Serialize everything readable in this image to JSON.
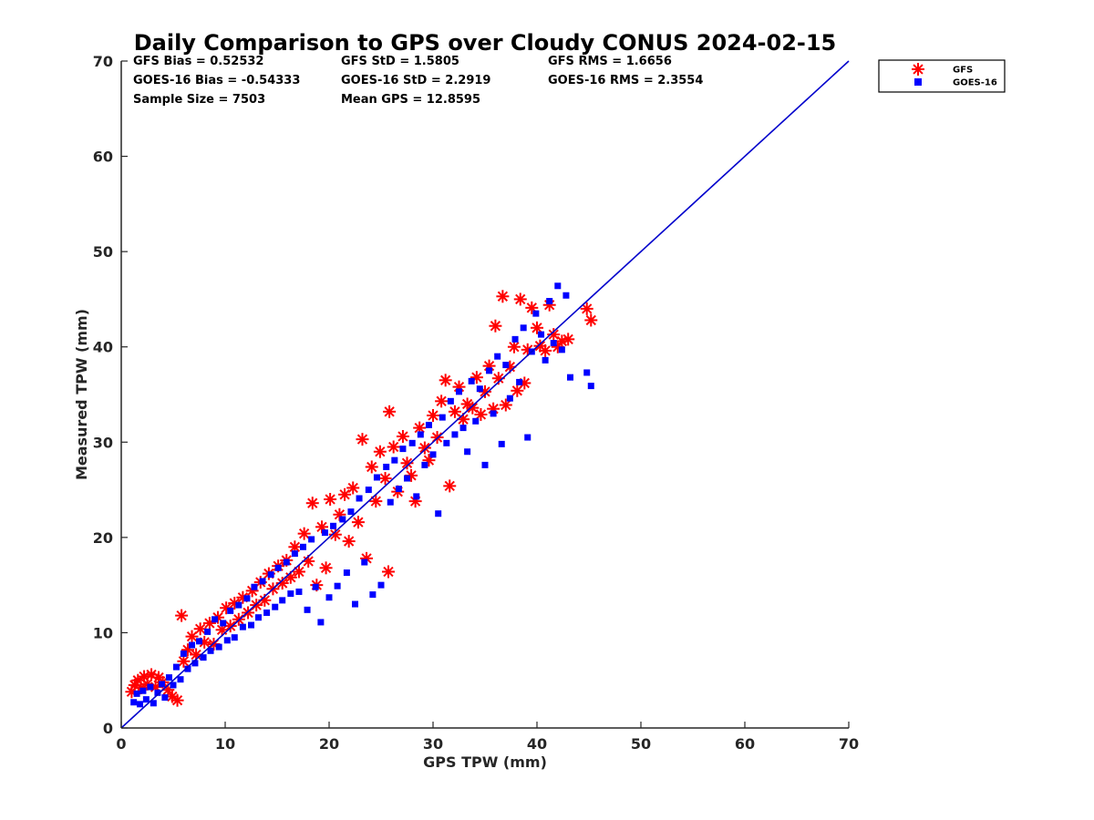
{
  "chart_data": {
    "type": "scatter",
    "title": "Daily Comparison to GPS over Cloudy CONUS 2024-02-15",
    "xlabel": "GPS TPW (mm)",
    "ylabel": "Measured TPW (mm)",
    "xlim": [
      0,
      70
    ],
    "ylim": [
      0,
      70
    ],
    "xticks": [
      0,
      10,
      20,
      30,
      40,
      50,
      60,
      70
    ],
    "yticks": [
      0,
      10,
      20,
      30,
      40,
      50,
      60,
      70
    ],
    "grid": false,
    "legend_position": "outside-top-right",
    "reference_line": {
      "x": [
        0,
        70
      ],
      "y": [
        0,
        70
      ],
      "color": "#0000cc"
    },
    "stats": [
      [
        "GFS Bias = 0.52532",
        "GFS StD = 1.5805",
        "GFS RMS = 1.6656"
      ],
      [
        "GOES-16 Bias = -0.54333",
        "GOES-16 StD = 2.2919",
        "GOES-16 RMS = 2.3554"
      ],
      [
        "Sample Size = 7503",
        "Mean GPS = 12.8595",
        ""
      ]
    ],
    "series": [
      {
        "name": "GFS",
        "marker": "asterisk",
        "color": "#ff0000",
        "points": [
          [
            1.0,
            3.8
          ],
          [
            1.3,
            4.5
          ],
          [
            1.6,
            5.0
          ],
          [
            1.9,
            4.2
          ],
          [
            2.2,
            5.4
          ],
          [
            2.5,
            4.6
          ],
          [
            2.9,
            5.6
          ],
          [
            3.3,
            4.3
          ],
          [
            3.6,
            5.3
          ],
          [
            4.0,
            4.8
          ],
          [
            4.5,
            4.0
          ],
          [
            4.9,
            3.3
          ],
          [
            5.4,
            2.9
          ],
          [
            5.8,
            11.8
          ],
          [
            6.0,
            7.0
          ],
          [
            6.4,
            8.2
          ],
          [
            6.8,
            9.6
          ],
          [
            7.2,
            7.7
          ],
          [
            7.6,
            10.4
          ],
          [
            8.0,
            9.0
          ],
          [
            8.5,
            11.0
          ],
          [
            8.9,
            8.8
          ],
          [
            9.3,
            11.6
          ],
          [
            9.7,
            10.3
          ],
          [
            10.1,
            12.6
          ],
          [
            10.5,
            10.7
          ],
          [
            10.9,
            13.1
          ],
          [
            11.3,
            11.4
          ],
          [
            11.7,
            13.7
          ],
          [
            12.2,
            12.1
          ],
          [
            12.6,
            14.4
          ],
          [
            13.0,
            12.9
          ],
          [
            13.4,
            15.3
          ],
          [
            13.8,
            13.4
          ],
          [
            14.2,
            16.2
          ],
          [
            14.6,
            14.6
          ],
          [
            15.1,
            17.0
          ],
          [
            15.5,
            15.2
          ],
          [
            15.9,
            17.6
          ],
          [
            16.3,
            15.8
          ],
          [
            16.7,
            19.0
          ],
          [
            17.1,
            16.4
          ],
          [
            17.6,
            20.4
          ],
          [
            18.0,
            17.5
          ],
          [
            18.4,
            23.6
          ],
          [
            18.8,
            15.0
          ],
          [
            19.3,
            21.1
          ],
          [
            19.7,
            16.8
          ],
          [
            20.1,
            24.0
          ],
          [
            20.6,
            20.3
          ],
          [
            21.0,
            22.4
          ],
          [
            21.5,
            24.5
          ],
          [
            21.9,
            19.6
          ],
          [
            22.3,
            25.2
          ],
          [
            22.8,
            21.6
          ],
          [
            23.2,
            30.3
          ],
          [
            23.6,
            17.8
          ],
          [
            24.1,
            27.4
          ],
          [
            24.5,
            23.8
          ],
          [
            24.9,
            29.0
          ],
          [
            25.4,
            26.2
          ],
          [
            25.7,
            16.4
          ],
          [
            25.8,
            33.2
          ],
          [
            26.2,
            29.5
          ],
          [
            26.6,
            24.8
          ],
          [
            27.1,
            30.6
          ],
          [
            27.5,
            27.8
          ],
          [
            27.9,
            26.5
          ],
          [
            28.3,
            23.8
          ],
          [
            28.7,
            31.5
          ],
          [
            29.2,
            29.4
          ],
          [
            29.6,
            28.1
          ],
          [
            30.0,
            32.8
          ],
          [
            30.4,
            30.5
          ],
          [
            30.8,
            34.3
          ],
          [
            31.2,
            36.5
          ],
          [
            31.6,
            25.4
          ],
          [
            32.1,
            33.2
          ],
          [
            32.5,
            35.8
          ],
          [
            32.9,
            32.4
          ],
          [
            33.3,
            34.0
          ],
          [
            33.8,
            33.6
          ],
          [
            34.2,
            36.8
          ],
          [
            34.6,
            32.9
          ],
          [
            35.0,
            35.3
          ],
          [
            35.4,
            38.0
          ],
          [
            35.8,
            33.5
          ],
          [
            36.0,
            42.2
          ],
          [
            36.3,
            36.7
          ],
          [
            36.7,
            45.3
          ],
          [
            37.0,
            33.9
          ],
          [
            37.4,
            37.9
          ],
          [
            37.8,
            40.0
          ],
          [
            38.1,
            35.4
          ],
          [
            38.4,
            45.0
          ],
          [
            38.8,
            36.2
          ],
          [
            39.1,
            39.7
          ],
          [
            39.5,
            44.1
          ],
          [
            40.0,
            42.0
          ],
          [
            40.3,
            40.1
          ],
          [
            40.8,
            39.6
          ],
          [
            41.2,
            44.4
          ],
          [
            41.6,
            41.3
          ],
          [
            42.0,
            40.0
          ],
          [
            42.4,
            40.6
          ],
          [
            43.0,
            40.8
          ],
          [
            44.8,
            44.0
          ],
          [
            45.2,
            42.8
          ]
        ]
      },
      {
        "name": "GOES-16",
        "marker": "square",
        "color": "#0000ff",
        "points": [
          [
            1.2,
            2.7
          ],
          [
            1.5,
            3.6
          ],
          [
            1.8,
            2.5
          ],
          [
            2.1,
            3.9
          ],
          [
            2.4,
            3.0
          ],
          [
            2.8,
            4.3
          ],
          [
            3.1,
            2.6
          ],
          [
            3.5,
            3.7
          ],
          [
            3.9,
            4.6
          ],
          [
            4.2,
            3.2
          ],
          [
            4.6,
            5.3
          ],
          [
            5.0,
            4.5
          ],
          [
            5.3,
            6.4
          ],
          [
            5.7,
            5.1
          ],
          [
            6.0,
            7.8
          ],
          [
            6.4,
            6.2
          ],
          [
            6.8,
            8.7
          ],
          [
            7.1,
            6.8
          ],
          [
            7.5,
            9.1
          ],
          [
            7.9,
            7.4
          ],
          [
            8.3,
            10.1
          ],
          [
            8.6,
            8.1
          ],
          [
            9.0,
            11.4
          ],
          [
            9.4,
            8.5
          ],
          [
            9.8,
            11.0
          ],
          [
            10.2,
            9.2
          ],
          [
            10.5,
            12.3
          ],
          [
            10.9,
            9.5
          ],
          [
            11.3,
            12.9
          ],
          [
            11.7,
            10.6
          ],
          [
            12.1,
            13.6
          ],
          [
            12.5,
            10.8
          ],
          [
            12.8,
            14.8
          ],
          [
            13.2,
            11.6
          ],
          [
            13.6,
            15.4
          ],
          [
            14.0,
            12.1
          ],
          [
            14.4,
            16.1
          ],
          [
            14.8,
            12.7
          ],
          [
            15.1,
            16.8
          ],
          [
            15.5,
            13.4
          ],
          [
            15.9,
            17.4
          ],
          [
            16.3,
            14.1
          ],
          [
            16.7,
            18.3
          ],
          [
            17.1,
            14.3
          ],
          [
            17.5,
            19.0
          ],
          [
            17.9,
            12.4
          ],
          [
            18.3,
            19.8
          ],
          [
            18.7,
            14.8
          ],
          [
            19.2,
            11.1
          ],
          [
            19.6,
            20.5
          ],
          [
            20.0,
            13.7
          ],
          [
            20.4,
            21.2
          ],
          [
            20.8,
            14.9
          ],
          [
            21.3,
            21.9
          ],
          [
            21.7,
            16.3
          ],
          [
            22.1,
            22.7
          ],
          [
            22.5,
            13.0
          ],
          [
            22.9,
            24.1
          ],
          [
            23.4,
            17.4
          ],
          [
            23.8,
            25.0
          ],
          [
            24.2,
            14.0
          ],
          [
            24.6,
            26.3
          ],
          [
            25.0,
            15.0
          ],
          [
            25.5,
            27.4
          ],
          [
            25.9,
            23.7
          ],
          [
            26.3,
            28.1
          ],
          [
            26.7,
            25.1
          ],
          [
            27.1,
            29.3
          ],
          [
            27.5,
            26.2
          ],
          [
            28.0,
            29.9
          ],
          [
            28.4,
            24.3
          ],
          [
            28.8,
            30.8
          ],
          [
            29.2,
            27.6
          ],
          [
            29.6,
            31.8
          ],
          [
            30.0,
            28.7
          ],
          [
            30.5,
            22.5
          ],
          [
            30.9,
            32.6
          ],
          [
            31.3,
            29.9
          ],
          [
            31.7,
            34.3
          ],
          [
            32.1,
            30.8
          ],
          [
            32.5,
            35.3
          ],
          [
            32.9,
            31.5
          ],
          [
            33.3,
            29.0
          ],
          [
            33.7,
            36.4
          ],
          [
            34.1,
            32.2
          ],
          [
            34.5,
            35.6
          ],
          [
            35.0,
            27.6
          ],
          [
            35.4,
            37.5
          ],
          [
            35.8,
            33.0
          ],
          [
            36.2,
            39.0
          ],
          [
            36.6,
            29.8
          ],
          [
            37.0,
            38.1
          ],
          [
            37.4,
            34.6
          ],
          [
            37.9,
            40.8
          ],
          [
            38.3,
            36.3
          ],
          [
            38.7,
            42.0
          ],
          [
            39.1,
            30.5
          ],
          [
            39.5,
            39.5
          ],
          [
            39.9,
            43.5
          ],
          [
            40.4,
            41.3
          ],
          [
            40.8,
            38.6
          ],
          [
            41.2,
            44.8
          ],
          [
            41.6,
            40.4
          ],
          [
            42.0,
            46.4
          ],
          [
            42.4,
            39.7
          ],
          [
            42.8,
            45.4
          ],
          [
            43.2,
            36.8
          ],
          [
            44.8,
            37.3
          ],
          [
            45.2,
            35.9
          ]
        ]
      }
    ]
  }
}
